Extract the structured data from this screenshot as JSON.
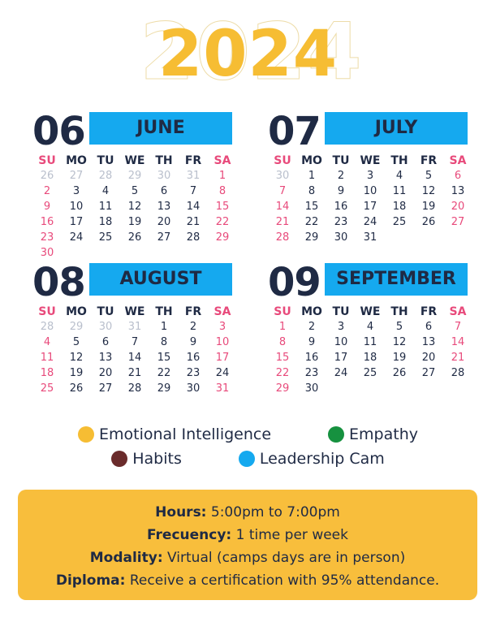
{
  "year": "2024",
  "weekdays": [
    "SU",
    "MO",
    "TU",
    "WE",
    "TH",
    "FR",
    "SA"
  ],
  "colors": {
    "yellow": "#f6bd33",
    "green": "#16913f",
    "brown": "#6a2b2b",
    "blue": "#15a9ef",
    "weekend": "#e84a7b",
    "dark": "#1f2a44",
    "muted": "#b9bfcc",
    "panel": "#f8be3c"
  },
  "months": [
    {
      "num": "06",
      "name": "JUNE",
      "weeks": [
        [
          {
            "d": "26",
            "o": 1
          },
          {
            "d": "27",
            "o": 1
          },
          {
            "d": "28",
            "o": 1
          },
          {
            "d": "29",
            "o": 1
          },
          {
            "d": "30",
            "o": 1
          },
          {
            "d": "31",
            "o": 1
          },
          {
            "d": "1"
          }
        ],
        [
          {
            "d": "2"
          },
          {
            "d": "3"
          },
          {
            "d": "4"
          },
          {
            "d": "5"
          },
          {
            "d": "6"
          },
          {
            "d": "7"
          },
          {
            "d": "8"
          }
        ],
        [
          {
            "d": "9"
          },
          {
            "d": "10"
          },
          {
            "d": "11"
          },
          {
            "d": "12"
          },
          {
            "d": "13"
          },
          {
            "d": "14"
          },
          {
            "d": "15"
          }
        ],
        [
          {
            "d": "16"
          },
          {
            "d": "17"
          },
          {
            "d": "18",
            "h": "emotional"
          },
          {
            "d": "19"
          },
          {
            "d": "20"
          },
          {
            "d": "21"
          },
          {
            "d": "22"
          }
        ],
        [
          {
            "d": "23"
          },
          {
            "d": "24"
          },
          {
            "d": "25",
            "h": "emotional"
          },
          {
            "d": "26"
          },
          {
            "d": "27"
          },
          {
            "d": "28"
          },
          {
            "d": "29"
          }
        ],
        [
          {
            "d": "30"
          },
          {
            "d": ""
          },
          {
            "d": ""
          },
          {
            "d": ""
          },
          {
            "d": ""
          },
          {
            "d": ""
          },
          {
            "d": ""
          }
        ]
      ]
    },
    {
      "num": "07",
      "name": "JULY",
      "weeks": [
        [
          {
            "d": "30",
            "o": 1
          },
          {
            "d": "1"
          },
          {
            "d": "2",
            "h": "emotional"
          },
          {
            "d": "3"
          },
          {
            "d": "4"
          },
          {
            "d": "5"
          },
          {
            "d": "6"
          }
        ],
        [
          {
            "d": "7"
          },
          {
            "d": "8"
          },
          {
            "d": "9",
            "h": "emotional"
          },
          {
            "d": "10"
          },
          {
            "d": "11"
          },
          {
            "d": "12"
          },
          {
            "d": "13",
            "h": "leadership"
          }
        ],
        [
          {
            "d": "14"
          },
          {
            "d": "15"
          },
          {
            "d": "16",
            "h": "emotional"
          },
          {
            "d": "17"
          },
          {
            "d": "18"
          },
          {
            "d": "19"
          },
          {
            "d": "20"
          }
        ],
        [
          {
            "d": "21"
          },
          {
            "d": "22"
          },
          {
            "d": "23",
            "h": "empathy"
          },
          {
            "d": "24"
          },
          {
            "d": "25"
          },
          {
            "d": "26"
          },
          {
            "d": "27"
          }
        ],
        [
          {
            "d": "28"
          },
          {
            "d": "29"
          },
          {
            "d": "30",
            "h": "empathy"
          },
          {
            "d": "31"
          },
          {
            "d": ""
          },
          {
            "d": ""
          },
          {
            "d": ""
          }
        ]
      ]
    },
    {
      "num": "08",
      "name": "AUGUST",
      "weeks": [
        [
          {
            "d": "28",
            "o": 1
          },
          {
            "d": "29",
            "o": 1
          },
          {
            "d": "30",
            "o": 1
          },
          {
            "d": "31",
            "o": 1
          },
          {
            "d": "1"
          },
          {
            "d": "2"
          },
          {
            "d": "3"
          }
        ],
        [
          {
            "d": "4"
          },
          {
            "d": "5"
          },
          {
            "d": "6",
            "h": "empathy"
          },
          {
            "d": "7"
          },
          {
            "d": "8"
          },
          {
            "d": "9"
          },
          {
            "d": "10"
          }
        ],
        [
          {
            "d": "11"
          },
          {
            "d": "12"
          },
          {
            "d": "13",
            "h": "empathy"
          },
          {
            "d": "14"
          },
          {
            "d": "15"
          },
          {
            "d": "16"
          },
          {
            "d": "17"
          }
        ],
        [
          {
            "d": "18"
          },
          {
            "d": "19"
          },
          {
            "d": "20",
            "h": "empathy"
          },
          {
            "d": "21"
          },
          {
            "d": "22"
          },
          {
            "d": "23"
          },
          {
            "d": "24",
            "h": "leadership"
          }
        ],
        [
          {
            "d": "25"
          },
          {
            "d": "26"
          },
          {
            "d": "27"
          },
          {
            "d": "28"
          },
          {
            "d": "29"
          },
          {
            "d": "30"
          },
          {
            "d": "31"
          }
        ]
      ]
    },
    {
      "num": "09",
      "name": "SEPTEMBER",
      "weeks": [
        [
          {
            "d": "1"
          },
          {
            "d": "2"
          },
          {
            "d": "3",
            "h": "habits"
          },
          {
            "d": "4"
          },
          {
            "d": "5"
          },
          {
            "d": "6"
          },
          {
            "d": "7"
          }
        ],
        [
          {
            "d": "8"
          },
          {
            "d": "9"
          },
          {
            "d": "10",
            "h": "habits"
          },
          {
            "d": "11"
          },
          {
            "d": "12"
          },
          {
            "d": "13"
          },
          {
            "d": "14"
          }
        ],
        [
          {
            "d": "15"
          },
          {
            "d": "16"
          },
          {
            "d": "17",
            "h": "habits"
          },
          {
            "d": "18"
          },
          {
            "d": "19"
          },
          {
            "d": "20"
          },
          {
            "d": "21"
          }
        ],
        [
          {
            "d": "22"
          },
          {
            "d": "23"
          },
          {
            "d": "24",
            "h": "habits"
          },
          {
            "d": "25"
          },
          {
            "d": "26"
          },
          {
            "d": "27"
          },
          {
            "d": "28",
            "h": "leadership"
          }
        ],
        [
          {
            "d": "29"
          },
          {
            "d": "30"
          },
          {
            "d": ""
          },
          {
            "d": ""
          },
          {
            "d": ""
          },
          {
            "d": ""
          },
          {
            "d": ""
          }
        ]
      ]
    }
  ],
  "legend": [
    {
      "key": "emotional",
      "label": "Emotional Intelligence",
      "color": "#f6bd33"
    },
    {
      "key": "empathy",
      "label": "Empathy",
      "color": "#16913f"
    },
    {
      "key": "habits",
      "label": "Habits",
      "color": "#6a2b2b"
    },
    {
      "key": "leadership",
      "label": "Leadership Cam",
      "color": "#15a9ef"
    }
  ],
  "info": {
    "hours_label": "Hours:",
    "hours_value": "5:00pm to 7:00pm",
    "frequency_label": "Frecuency:",
    "frequency_value": "1 time per week",
    "modality_label": "Modality:",
    "modality_value": "Virtual (camps days are in person)",
    "diploma_label": "Diploma:",
    "diploma_value": "Receive a certification with 95% attendance."
  }
}
